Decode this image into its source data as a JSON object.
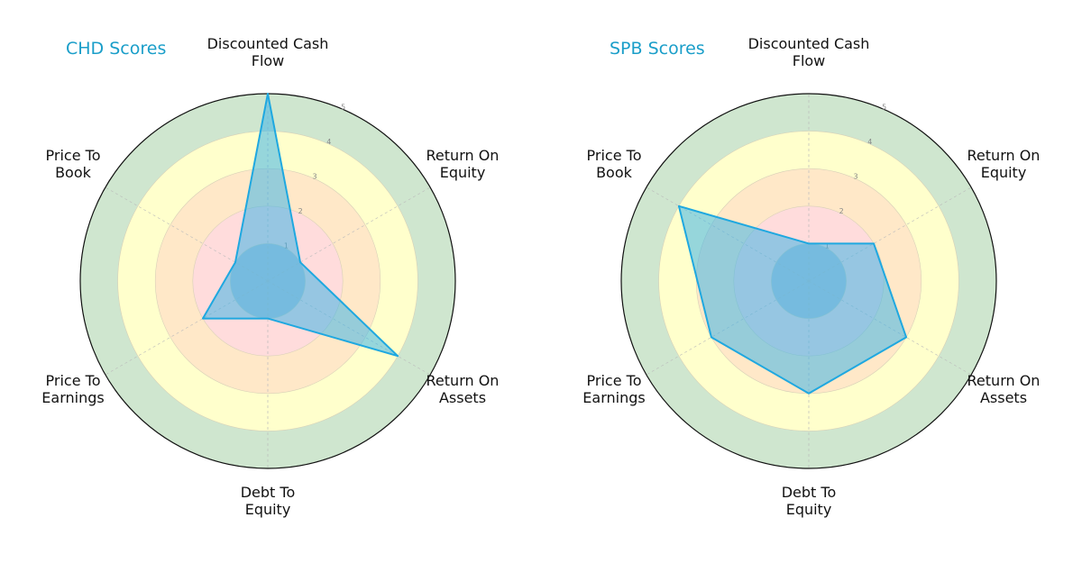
{
  "chart_data": [
    {
      "type": "radar",
      "title": "CHD Scores",
      "categories": [
        [
          "Discounted Cash",
          "Flow"
        ],
        [
          "Return On",
          "Equity"
        ],
        [
          "Return On",
          "Assets"
        ],
        [
          "Debt To",
          "Equity"
        ],
        [
          "Price To",
          "Earnings"
        ],
        [
          "Price To",
          "Book"
        ]
      ],
      "values": [
        5,
        1,
        4,
        1,
        2,
        1
      ],
      "rlim": [
        0,
        5
      ],
      "ticks": [
        "1",
        "2",
        "3",
        "4",
        "5"
      ]
    },
    {
      "type": "radar",
      "title": "SPB Scores",
      "categories": [
        [
          "Discounted Cash",
          "Flow"
        ],
        [
          "Return On",
          "Equity"
        ],
        [
          "Return On",
          "Assets"
        ],
        [
          "Debt To",
          "Equity"
        ],
        [
          "Price To",
          "Earnings"
        ],
        [
          "Price To",
          "Book"
        ]
      ],
      "values": [
        1,
        2,
        3,
        3,
        3,
        4
      ],
      "rlim": [
        0,
        5
      ],
      "ticks": [
        "1",
        "2",
        "3",
        "4",
        "5"
      ]
    }
  ],
  "colors": {
    "title": "#1a9ec9",
    "fill": "#3fb4e8",
    "line": "#1fa8e0",
    "band_0_1": "#b8c4d4",
    "band_1_2": "#ffdcdc",
    "band_2_3": "#ffe8c8",
    "band_3_4": "#ffffcc",
    "band_4_5": "#cfe6cf"
  }
}
